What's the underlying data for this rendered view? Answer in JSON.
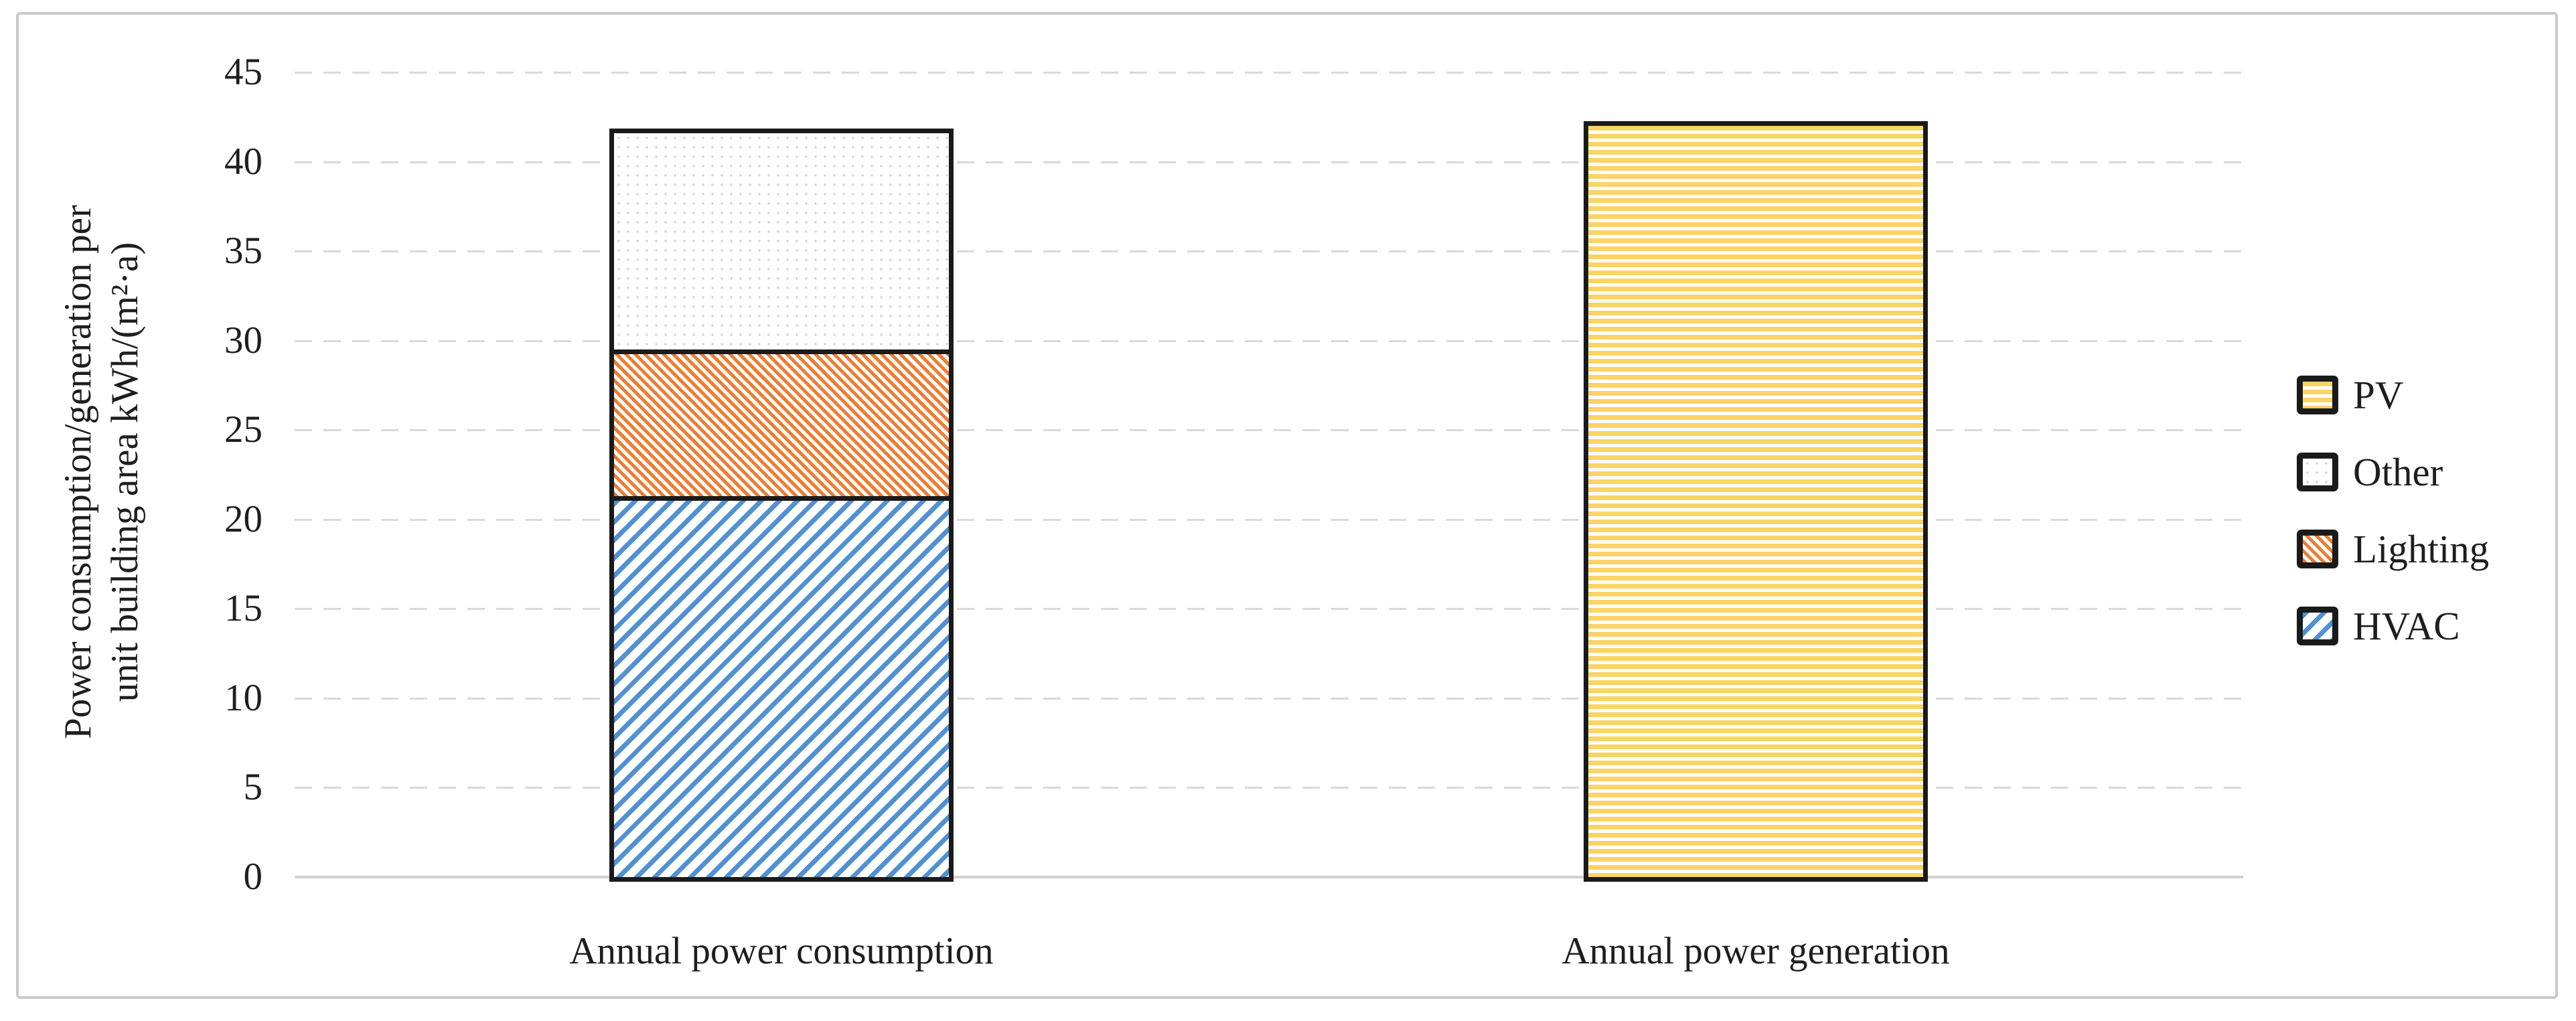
{
  "figure": {
    "y_axis": {
      "title_line1": "Power consumption/generation per",
      "title_line2": "unit building area kWh/(m²·a)"
    },
    "legend": [
      {
        "label": "PV",
        "pattern": "pv"
      },
      {
        "label": "Other",
        "pattern": "other"
      },
      {
        "label": "Lighting",
        "pattern": "lighting"
      },
      {
        "label": "HVAC",
        "pattern": "hvac"
      }
    ],
    "colors": {
      "pv_yellow": "#fbd466",
      "lighting_orange": "#ed7d31",
      "hvac_blue": "#5191d3",
      "other_dot_gray": "#d2d2d2",
      "gridline_gray": "#d9d9d9",
      "axis_line_gray": "#d0d0d0",
      "bar_border_black": "#1a1a1a",
      "text_color": "#1e1e1e",
      "frame_gray": "#c9c9c9"
    }
  },
  "chart_data": {
    "type": "bar",
    "stacked": true,
    "title": "",
    "xlabel": "",
    "ylabel": "Power consumption/generation per unit building area kWh/(m²·a)",
    "categories": [
      "Annual power consumption",
      "Annual power generation"
    ],
    "series": [
      {
        "name": "HVAC",
        "pattern": "hvac",
        "values": [
          21.3,
          0
        ]
      },
      {
        "name": "Lighting",
        "pattern": "lighting",
        "values": [
          8.2,
          0
        ]
      },
      {
        "name": "Other",
        "pattern": "other",
        "values": [
          12.1,
          0
        ]
      },
      {
        "name": "PV",
        "pattern": "pv",
        "values": [
          0,
          42.0
        ]
      }
    ],
    "totals": [
      41.6,
      42.0
    ],
    "ylim": [
      0,
      45
    ],
    "ytick_step": 5,
    "yticks": [
      0,
      5,
      10,
      15,
      20,
      25,
      30,
      35,
      40,
      45
    ],
    "grid": "horizontal dashed",
    "legend_position": "right",
    "legend_order_top_to_bottom": [
      "PV",
      "Other",
      "Lighting",
      "HVAC"
    ]
  }
}
